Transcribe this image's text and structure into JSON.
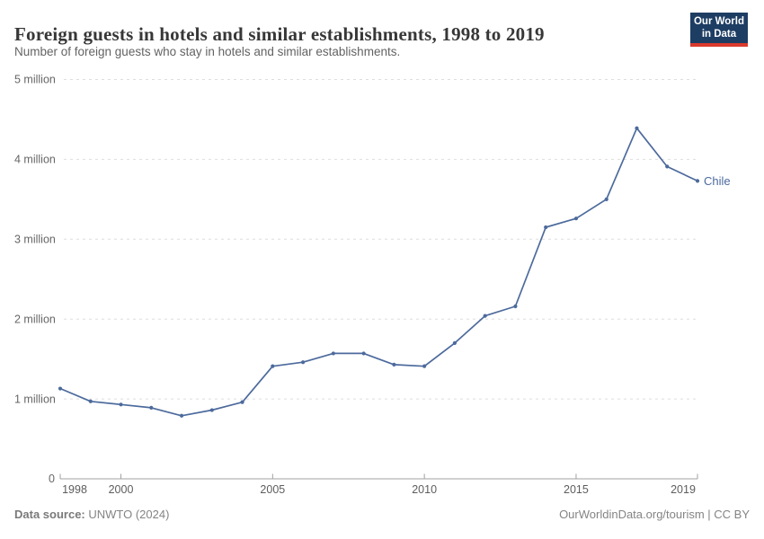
{
  "header": {
    "logo": {
      "lines": [
        "Our World",
        "in Data"
      ],
      "bg_color": "#1d3d63",
      "bar_color": "#d93a2d"
    }
  },
  "chart_data": {
    "type": "line",
    "title": "Foreign guests in hotels and similar establishments, 1998 to 2019",
    "subtitle": "Number of foreign guests who stay in hotels and similar establishments.",
    "x": [
      1998,
      1999,
      2000,
      2001,
      2002,
      2003,
      2004,
      2005,
      2006,
      2007,
      2008,
      2009,
      2010,
      2011,
      2012,
      2013,
      2014,
      2015,
      2016,
      2017,
      2018,
      2019
    ],
    "series": [
      {
        "name": "Chile",
        "color": "#4c6a9c",
        "values": [
          1.13,
          0.97,
          0.93,
          0.89,
          0.79,
          0.86,
          0.96,
          1.41,
          1.46,
          1.57,
          1.57,
          1.43,
          1.41,
          1.7,
          2.04,
          2.16,
          3.15,
          3.26,
          3.5,
          4.39,
          3.91,
          3.73
        ]
      }
    ],
    "unit": "million",
    "ylim": [
      0,
      5
    ],
    "ytick_values": [
      0,
      1,
      2,
      3,
      4,
      5
    ],
    "ytick_labels": [
      "0",
      "1 million",
      "2 million",
      "3 million",
      "4 million",
      "5 million"
    ],
    "xticks": [
      1998,
      2000,
      2005,
      2010,
      2015,
      2019
    ],
    "grid": "horizontal dashed",
    "legend_position": "end-of-line label",
    "colors": {
      "gridline": "#dedede",
      "axis": "#a1a1a1",
      "ytick_label": "#666666",
      "xtick_label": "#5d5d5d"
    }
  },
  "footer": {
    "source_label": "Data source:",
    "source_value": "UNWTO (2024)",
    "credit": "OurWorldinData.org/tourism | CC BY"
  }
}
